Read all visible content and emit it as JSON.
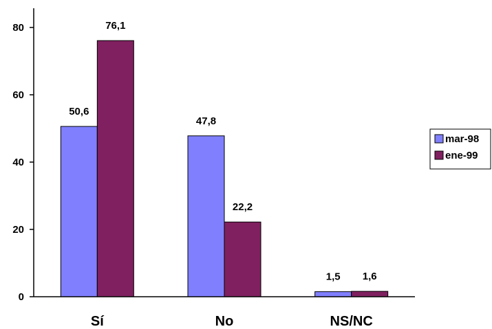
{
  "chart_data": {
    "type": "bar",
    "categories": [
      "Sí",
      "No",
      "NS/NC"
    ],
    "series": [
      {
        "name": "mar-98",
        "values": [
          50.6,
          47.8,
          1.5
        ],
        "labels": [
          "50,6",
          "47,8",
          "1,5"
        ],
        "color": "#8080ff"
      },
      {
        "name": "ene-99",
        "values": [
          76.1,
          22.2,
          1.6
        ],
        "labels": [
          "76,1",
          "22,2",
          "1,6"
        ],
        "color": "#802060"
      }
    ],
    "yticks": [
      0,
      20,
      40,
      60,
      80
    ],
    "ylim": [
      0,
      80
    ],
    "grid": false,
    "legend": "right"
  }
}
